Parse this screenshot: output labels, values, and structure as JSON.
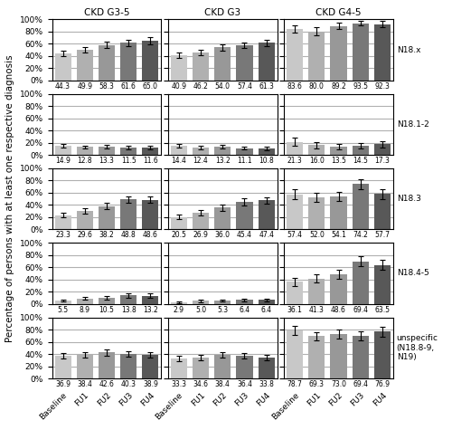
{
  "chart_data": [
    {
      "type": "bar",
      "title": "CKD G3-5",
      "categories": [
        "Baseline",
        "FU1",
        "FU2",
        "FU3",
        "FU4"
      ],
      "values": [
        44.3,
        49.9,
        58.3,
        61.6,
        65.0
      ],
      "errors": [
        4.5,
        4.5,
        5.0,
        5.5,
        5.5
      ],
      "colors": [
        "#c8c8c8",
        "#b0b0b0",
        "#989898",
        "#787878",
        "#585858"
      ],
      "ylim": [
        0,
        100
      ],
      "yticks": [
        {
          "value": 0,
          "label": "0%"
        },
        {
          "value": 20,
          "label": "20%"
        },
        {
          "value": 40,
          "label": "40%"
        },
        {
          "value": 60,
          "label": "60%"
        },
        {
          "value": 80,
          "label": "80%"
        },
        {
          "value": 100,
          "label": "100%"
        }
      ],
      "grid": true,
      "data_labels": true,
      "tick_labels": "y"
    },
    {
      "type": "bar",
      "title": "CKD G3",
      "categories": [
        "Baseline",
        "FU1",
        "FU2",
        "FU3",
        "FU4"
      ],
      "values": [
        40.9,
        46.2,
        54.0,
        57.4,
        61.3
      ],
      "errors": [
        4.5,
        4.5,
        5.0,
        5.0,
        5.5
      ],
      "colors": [
        "#c8c8c8",
        "#b0b0b0",
        "#989898",
        "#787878",
        "#585858"
      ],
      "ylim": [
        0,
        100
      ],
      "yticks": [
        {
          "value": 0,
          "label": "0%"
        },
        {
          "value": 20,
          "label": "20%"
        },
        {
          "value": 40,
          "label": "40%"
        },
        {
          "value": 60,
          "label": "60%"
        },
        {
          "value": 80,
          "label": "80%"
        },
        {
          "value": 100,
          "label": "100%"
        }
      ],
      "grid": true,
      "data_labels": true,
      "tick_labels": false
    },
    {
      "type": "bar",
      "title": "CKD G4-5",
      "annotations": [
        "N18.x"
      ],
      "categories": [
        "Baseline",
        "FU1",
        "FU2",
        "FU3",
        "FU4"
      ],
      "values": [
        83.6,
        80.0,
        89.2,
        93.5,
        92.3
      ],
      "errors": [
        6.0,
        6.5,
        5.5,
        4.0,
        5.0
      ],
      "colors": [
        "#c8c8c8",
        "#b0b0b0",
        "#989898",
        "#787878",
        "#585858"
      ],
      "ylim": [
        0,
        100
      ],
      "yticks": [
        {
          "value": 0,
          "label": "0%"
        },
        {
          "value": 20,
          "label": "20%"
        },
        {
          "value": 40,
          "label": "40%"
        },
        {
          "value": 60,
          "label": "60%"
        },
        {
          "value": 80,
          "label": "80%"
        },
        {
          "value": 100,
          "label": "100%"
        }
      ],
      "grid": true,
      "data_labels": true,
      "tick_labels": false
    },
    {
      "type": "bar",
      "categories": [
        "Baseline",
        "FU1",
        "FU2",
        "FU3",
        "FU4"
      ],
      "values": [
        14.9,
        12.8,
        13.3,
        11.5,
        11.6
      ],
      "errors": [
        3.2,
        2.8,
        3.0,
        2.8,
        2.8
      ],
      "colors": [
        "#c8c8c8",
        "#b0b0b0",
        "#989898",
        "#787878",
        "#585858"
      ],
      "ylim": [
        0,
        100
      ],
      "yticks": [
        {
          "value": 0,
          "label": "0%"
        },
        {
          "value": 20,
          "label": "20%"
        },
        {
          "value": 40,
          "label": "40%"
        },
        {
          "value": 60,
          "label": "60%"
        },
        {
          "value": 80,
          "label": "80%"
        },
        {
          "value": 100,
          "label": "100%"
        }
      ],
      "grid": true,
      "data_labels": true,
      "tick_labels": "y"
    },
    {
      "type": "bar",
      "categories": [
        "Baseline",
        "FU1",
        "FU2",
        "FU3",
        "FU4"
      ],
      "values": [
        14.4,
        12.4,
        13.2,
        11.1,
        10.8
      ],
      "errors": [
        3.0,
        2.8,
        2.8,
        2.5,
        2.8
      ],
      "colors": [
        "#c8c8c8",
        "#b0b0b0",
        "#989898",
        "#787878",
        "#585858"
      ],
      "ylim": [
        0,
        100
      ],
      "yticks": [
        {
          "value": 0,
          "label": "0%"
        },
        {
          "value": 20,
          "label": "20%"
        },
        {
          "value": 40,
          "label": "40%"
        },
        {
          "value": 60,
          "label": "60%"
        },
        {
          "value": 80,
          "label": "80%"
        },
        {
          "value": 100,
          "label": "100%"
        }
      ],
      "grid": true,
      "data_labels": true,
      "tick_labels": false
    },
    {
      "type": "bar",
      "annotations": [
        "N18.1-2"
      ],
      "categories": [
        "Baseline",
        "FU1",
        "FU2",
        "FU3",
        "FU4"
      ],
      "values": [
        21.3,
        16.0,
        13.5,
        14.5,
        17.3
      ],
      "errors": [
        6.5,
        5.5,
        4.5,
        4.5,
        5.5
      ],
      "colors": [
        "#c8c8c8",
        "#b0b0b0",
        "#989898",
        "#787878",
        "#585858"
      ],
      "ylim": [
        0,
        100
      ],
      "yticks": [
        {
          "value": 0,
          "label": "0%"
        },
        {
          "value": 20,
          "label": "20%"
        },
        {
          "value": 40,
          "label": "40%"
        },
        {
          "value": 60,
          "label": "60%"
        },
        {
          "value": 80,
          "label": "80%"
        },
        {
          "value": 100,
          "label": "100%"
        }
      ],
      "grid": true,
      "data_labels": true,
      "tick_labels": false
    },
    {
      "type": "bar",
      "y_label": "Percentage of persons with at least one respective diagnosis",
      "categories": [
        "Baseline",
        "FU1",
        "FU2",
        "FU3",
        "FU4"
      ],
      "values": [
        23.3,
        29.6,
        38.2,
        48.8,
        48.6
      ],
      "errors": [
        4.0,
        4.5,
        5.0,
        5.5,
        5.5
      ],
      "colors": [
        "#c8c8c8",
        "#b0b0b0",
        "#989898",
        "#787878",
        "#585858"
      ],
      "ylim": [
        0,
        100
      ],
      "yticks": [
        {
          "value": 0,
          "label": "0%"
        },
        {
          "value": 20,
          "label": "20%"
        },
        {
          "value": 40,
          "label": "40%"
        },
        {
          "value": 60,
          "label": "60%"
        },
        {
          "value": 80,
          "label": "80%"
        },
        {
          "value": 100,
          "label": "100%"
        }
      ],
      "grid": true,
      "data_labels": true,
      "tick_labels": "y"
    },
    {
      "type": "bar",
      "categories": [
        "Baseline",
        "FU1",
        "FU2",
        "FU3",
        "FU4"
      ],
      "values": [
        20.5,
        26.9,
        36.0,
        45.4,
        47.4
      ],
      "errors": [
        4.0,
        4.5,
        5.0,
        5.5,
        5.5
      ],
      "colors": [
        "#c8c8c8",
        "#b0b0b0",
        "#989898",
        "#787878",
        "#585858"
      ],
      "ylim": [
        0,
        100
      ],
      "yticks": [
        {
          "value": 0,
          "label": "0%"
        },
        {
          "value": 20,
          "label": "20%"
        },
        {
          "value": 40,
          "label": "40%"
        },
        {
          "value": 60,
          "label": "60%"
        },
        {
          "value": 80,
          "label": "80%"
        },
        {
          "value": 100,
          "label": "100%"
        }
      ],
      "grid": true,
      "data_labels": true,
      "tick_labels": false
    },
    {
      "type": "bar",
      "annotations": [
        "N18.3"
      ],
      "categories": [
        "Baseline",
        "FU1",
        "FU2",
        "FU3",
        "FU4"
      ],
      "values": [
        57.4,
        52.0,
        54.1,
        74.2,
        57.7
      ],
      "errors": [
        8.0,
        7.5,
        7.5,
        8.0,
        8.5
      ],
      "colors": [
        "#c8c8c8",
        "#b0b0b0",
        "#989898",
        "#787878",
        "#585858"
      ],
      "ylim": [
        0,
        100
      ],
      "yticks": [
        {
          "value": 0,
          "label": "0%"
        },
        {
          "value": 20,
          "label": "20%"
        },
        {
          "value": 40,
          "label": "40%"
        },
        {
          "value": 60,
          "label": "60%"
        },
        {
          "value": 80,
          "label": "80%"
        },
        {
          "value": 100,
          "label": "100%"
        }
      ],
      "grid": true,
      "data_labels": true,
      "tick_labels": false
    },
    {
      "type": "bar",
      "categories": [
        "Baseline",
        "FU1",
        "FU2",
        "FU3",
        "FU4"
      ],
      "values": [
        5.5,
        8.9,
        10.5,
        13.8,
        13.2
      ],
      "errors": [
        2.0,
        2.5,
        2.8,
        3.5,
        3.5
      ],
      "colors": [
        "#c8c8c8",
        "#b0b0b0",
        "#989898",
        "#787878",
        "#585858"
      ],
      "ylim": [
        0,
        100
      ],
      "yticks": [
        {
          "value": 0,
          "label": "0%"
        },
        {
          "value": 20,
          "label": "20%"
        },
        {
          "value": 40,
          "label": "40%"
        },
        {
          "value": 60,
          "label": "60%"
        },
        {
          "value": 80,
          "label": "80%"
        },
        {
          "value": 100,
          "label": "100%"
        }
      ],
      "grid": true,
      "data_labels": true,
      "tick_labels": "y"
    },
    {
      "type": "bar",
      "categories": [
        "Baseline",
        "FU1",
        "FU2",
        "FU3",
        "FU4"
      ],
      "values": [
        2.9,
        5.0,
        5.3,
        6.4,
        6.4
      ],
      "errors": [
        1.5,
        2.0,
        2.0,
        2.5,
        2.5
      ],
      "colors": [
        "#c8c8c8",
        "#b0b0b0",
        "#989898",
        "#787878",
        "#585858"
      ],
      "ylim": [
        0,
        100
      ],
      "yticks": [
        {
          "value": 0,
          "label": "0%"
        },
        {
          "value": 20,
          "label": "20%"
        },
        {
          "value": 40,
          "label": "40%"
        },
        {
          "value": 60,
          "label": "60%"
        },
        {
          "value": 80,
          "label": "80%"
        },
        {
          "value": 100,
          "label": "100%"
        }
      ],
      "grid": true,
      "data_labels": true,
      "tick_labels": false
    },
    {
      "type": "bar",
      "annotations": [
        "N18.4-5"
      ],
      "categories": [
        "Baseline",
        "FU1",
        "FU2",
        "FU3",
        "FU4"
      ],
      "values": [
        36.1,
        41.3,
        48.6,
        69.4,
        63.5
      ],
      "errors": [
        6.5,
        6.5,
        7.0,
        8.0,
        8.0
      ],
      "colors": [
        "#c8c8c8",
        "#b0b0b0",
        "#989898",
        "#787878",
        "#585858"
      ],
      "ylim": [
        0,
        100
      ],
      "yticks": [
        {
          "value": 0,
          "label": "0%"
        },
        {
          "value": 20,
          "label": "20%"
        },
        {
          "value": 40,
          "label": "40%"
        },
        {
          "value": 60,
          "label": "60%"
        },
        {
          "value": 80,
          "label": "80%"
        },
        {
          "value": 100,
          "label": "100%"
        }
      ],
      "grid": true,
      "data_labels": true,
      "tick_labels": false
    },
    {
      "type": "bar",
      "categories": [
        "Baseline",
        "FU1",
        "FU2",
        "FU3",
        "FU4"
      ],
      "values": [
        36.9,
        38.4,
        42.6,
        40.3,
        38.9
      ],
      "errors": [
        4.5,
        4.5,
        5.0,
        4.5,
        4.5
      ],
      "colors": [
        "#c8c8c8",
        "#b0b0b0",
        "#989898",
        "#787878",
        "#585858"
      ],
      "ylim": [
        0,
        100
      ],
      "yticks": [
        {
          "value": 0,
          "label": "0%"
        },
        {
          "value": 20,
          "label": "20%"
        },
        {
          "value": 40,
          "label": "40%"
        },
        {
          "value": 60,
          "label": "60%"
        },
        {
          "value": 80,
          "label": "80%"
        },
        {
          "value": 100,
          "label": "100%"
        }
      ],
      "grid": true,
      "data_labels": true
    },
    {
      "type": "bar",
      "categories": [
        "Baseline",
        "FU1",
        "FU2",
        "FU3",
        "FU4"
      ],
      "values": [
        33.3,
        34.6,
        38.4,
        36.4,
        33.8
      ],
      "errors": [
        4.5,
        4.5,
        5.0,
        4.5,
        4.5
      ],
      "colors": [
        "#c8c8c8",
        "#b0b0b0",
        "#989898",
        "#787878",
        "#585858"
      ],
      "ylim": [
        0,
        100
      ],
      "yticks": [
        {
          "value": 0,
          "label": "0%"
        },
        {
          "value": 20,
          "label": "20%"
        },
        {
          "value": 40,
          "label": "40%"
        },
        {
          "value": 60,
          "label": "60%"
        },
        {
          "value": 80,
          "label": "80%"
        },
        {
          "value": 100,
          "label": "100%"
        }
      ],
      "grid": true,
      "data_labels": true,
      "tick_labels": "x"
    },
    {
      "type": "bar",
      "annotations": [
        "unspecific (N18.8-9, N19)"
      ],
      "categories": [
        "Baseline",
        "FU1",
        "FU2",
        "FU3",
        "FU4"
      ],
      "values": [
        78.7,
        69.3,
        73.0,
        69.4,
        76.9
      ],
      "errors": [
        8.0,
        7.0,
        7.5,
        7.5,
        8.0
      ],
      "colors": [
        "#c8c8c8",
        "#b0b0b0",
        "#989898",
        "#787878",
        "#585858"
      ],
      "ylim": [
        0,
        100
      ],
      "yticks": [
        {
          "value": 0,
          "label": "0%"
        },
        {
          "value": 20,
          "label": "20%"
        },
        {
          "value": 40,
          "label": "40%"
        },
        {
          "value": 60,
          "label": "60%"
        },
        {
          "value": 80,
          "label": "80%"
        },
        {
          "value": 100,
          "label": "100%"
        }
      ],
      "grid": true,
      "data_labels": true,
      "tick_labels": "x"
    }
  ]
}
